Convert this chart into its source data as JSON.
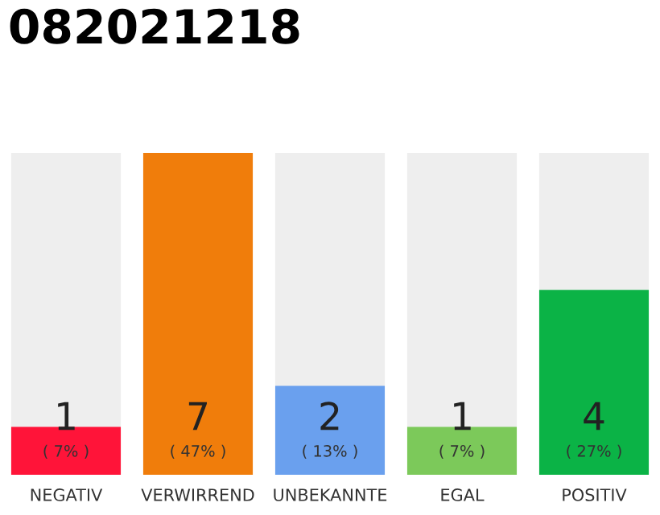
{
  "chart_data": {
    "type": "bar",
    "title": "082021218",
    "categories": [
      "NEGATIV",
      "VERWIRREND",
      "UNBEKANNTE",
      "EGAL",
      "POSITIV"
    ],
    "series": [
      {
        "colors": [
          "#ff1439",
          "#f07d0b",
          "#6aa0ee",
          "#7cc95a",
          "#0bb346"
        ],
        "values": [
          7,
          47,
          13,
          7,
          27
        ],
        "value_labels": [
          "( 7% )",
          "( 47% )",
          "( 13% )",
          "( 7% )",
          "( 27% )"
        ]
      }
    ],
    "annotations": [
      "1",
      "7",
      "2",
      "1",
      "4"
    ],
    "grid": false,
    "legend": false
  }
}
